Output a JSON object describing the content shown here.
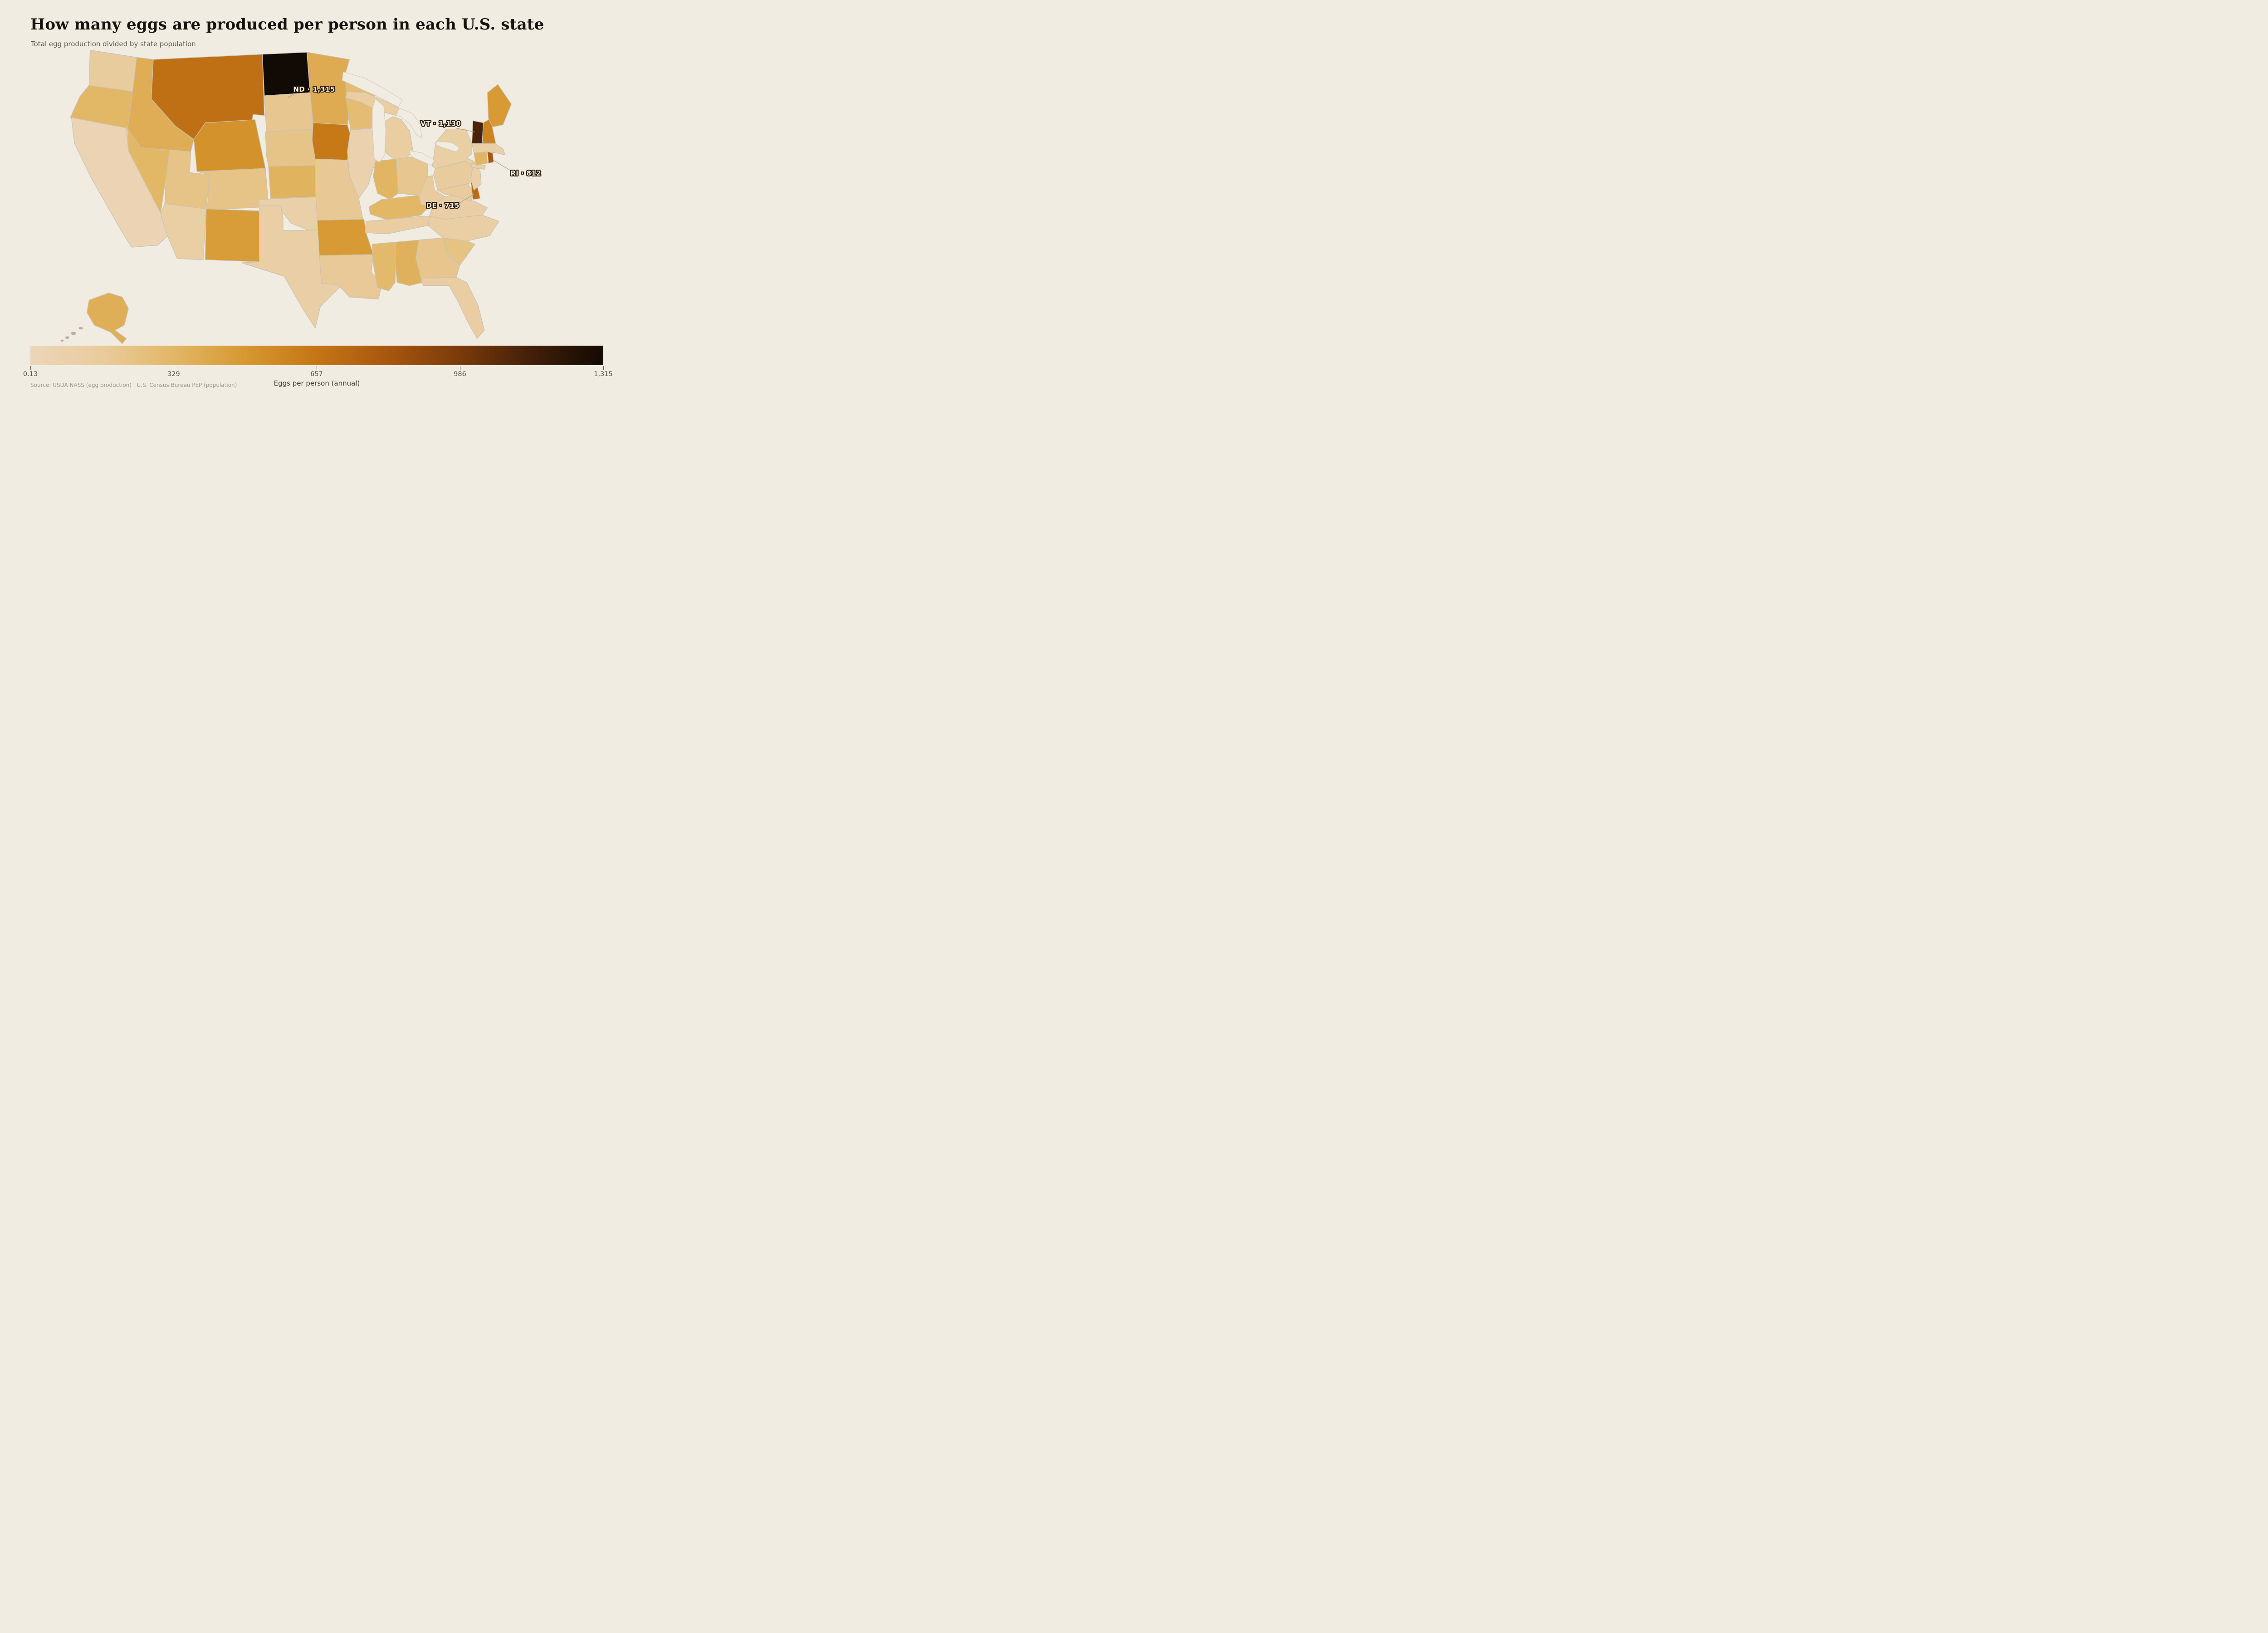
{
  "title": "How many eggs are produced per person in each U.S. state",
  "subtitle": "Total egg production divided by state population",
  "source": "Source: USDA NASS (egg production) · U.S. Census Bureau PEP (population)",
  "legend": {
    "label": "Eggs per person (annual)",
    "min": 0.13,
    "max": 1315,
    "ticks": [
      "0.13",
      "329",
      "657",
      "986",
      "1,315"
    ],
    "tick_values": [
      0.13,
      329,
      657,
      986,
      1315
    ],
    "gradient_stops": [
      "#ecd5b8",
      "#e9cb9c",
      "#e2b766",
      "#d69830",
      "#c57515",
      "#a8560e",
      "#7a3a0a",
      "#421f08",
      "#120a04"
    ]
  },
  "callouts": [
    {
      "state": "ND",
      "label": "ND · 1,315"
    },
    {
      "state": "VT",
      "label": "VT · 1,130"
    },
    {
      "state": "RI",
      "label": "RI · 812"
    },
    {
      "state": "DE",
      "label": "DE · 715"
    }
  ],
  "chart_data": {
    "type": "choropleth-map",
    "region": "United States (states)",
    "value_label": "Eggs per person (annual)",
    "value_range": [
      0.13,
      1315
    ],
    "labeled_states": {
      "ND": 1315,
      "VT": 1130,
      "RI": 812,
      "DE": 715
    },
    "note": "Unlabeled state values estimated from map color against the legend scale",
    "states": [
      {
        "abbr": "WA",
        "name": "Washington",
        "value": 150
      },
      {
        "abbr": "OR",
        "name": "Oregon",
        "value": 330
      },
      {
        "abbr": "CA",
        "name": "California",
        "value": 30
      },
      {
        "abbr": "NV",
        "name": "Nevada",
        "value": 330
      },
      {
        "abbr": "ID",
        "name": "Idaho",
        "value": 380
      },
      {
        "abbr": "MT",
        "name": "Montana",
        "value": 690
      },
      {
        "abbr": "WY",
        "name": "Wyoming",
        "value": 520
      },
      {
        "abbr": "UT",
        "name": "Utah",
        "value": 230
      },
      {
        "abbr": "CO",
        "name": "Colorado",
        "value": 230
      },
      {
        "abbr": "AZ",
        "name": "Arizona",
        "value": 120
      },
      {
        "abbr": "NM",
        "name": "New Mexico",
        "value": 470
      },
      {
        "abbr": "ND",
        "name": "North Dakota",
        "value": 1315
      },
      {
        "abbr": "SD",
        "name": "South Dakota",
        "value": 205
      },
      {
        "abbr": "NE",
        "name": "Nebraska",
        "value": 230
      },
      {
        "abbr": "KS",
        "name": "Kansas",
        "value": 350
      },
      {
        "abbr": "OK",
        "name": "Oklahoma",
        "value": 90
      },
      {
        "abbr": "TX",
        "name": "Texas",
        "value": 110
      },
      {
        "abbr": "MN",
        "name": "Minnesota",
        "value": 390
      },
      {
        "abbr": "IA",
        "name": "Iowa",
        "value": 640
      },
      {
        "abbr": "MO",
        "name": "Missouri",
        "value": 185
      },
      {
        "abbr": "AR",
        "name": "Arkansas",
        "value": 480
      },
      {
        "abbr": "LA",
        "name": "Louisiana",
        "value": 180
      },
      {
        "abbr": "WI",
        "name": "Wisconsin",
        "value": 290
      },
      {
        "abbr": "IL",
        "name": "Illinois",
        "value": 65
      },
      {
        "abbr": "MI",
        "name": "Michigan",
        "value": 135
      },
      {
        "abbr": "IN",
        "name": "Indiana",
        "value": 340
      },
      {
        "abbr": "OH",
        "name": "Ohio",
        "value": 205
      },
      {
        "abbr": "KY",
        "name": "Kentucky",
        "value": 330
      },
      {
        "abbr": "TN",
        "name": "Tennessee",
        "value": 130
      },
      {
        "abbr": "MS",
        "name": "Mississippi",
        "value": 310
      },
      {
        "abbr": "AL",
        "name": "Alabama",
        "value": 360
      },
      {
        "abbr": "GA",
        "name": "Georgia",
        "value": 210
      },
      {
        "abbr": "FL",
        "name": "Florida",
        "value": 130
      },
      {
        "abbr": "SC",
        "name": "South Carolina",
        "value": 240
      },
      {
        "abbr": "NC",
        "name": "North Carolina",
        "value": 115
      },
      {
        "abbr": "VA",
        "name": "Virginia",
        "value": 110
      },
      {
        "abbr": "WV",
        "name": "West Virginia",
        "value": 150
      },
      {
        "abbr": "MD",
        "name": "Maryland",
        "value": 160
      },
      {
        "abbr": "DE",
        "name": "Delaware",
        "value": 715
      },
      {
        "abbr": "PA",
        "name": "Pennsylvania",
        "value": 150
      },
      {
        "abbr": "NJ",
        "name": "New Jersey",
        "value": 100
      },
      {
        "abbr": "NY",
        "name": "New York",
        "value": 120
      },
      {
        "abbr": "CT",
        "name": "Connecticut",
        "value": 340
      },
      {
        "abbr": "RI",
        "name": "Rhode Island",
        "value": 812
      },
      {
        "abbr": "MA",
        "name": "Massachusetts",
        "value": 105
      },
      {
        "abbr": "VT",
        "name": "Vermont",
        "value": 1130
      },
      {
        "abbr": "NH",
        "name": "New Hampshire",
        "value": 590
      },
      {
        "abbr": "ME",
        "name": "Maine",
        "value": 480
      },
      {
        "abbr": "AK",
        "name": "Alaska",
        "value": 370
      }
    ]
  }
}
